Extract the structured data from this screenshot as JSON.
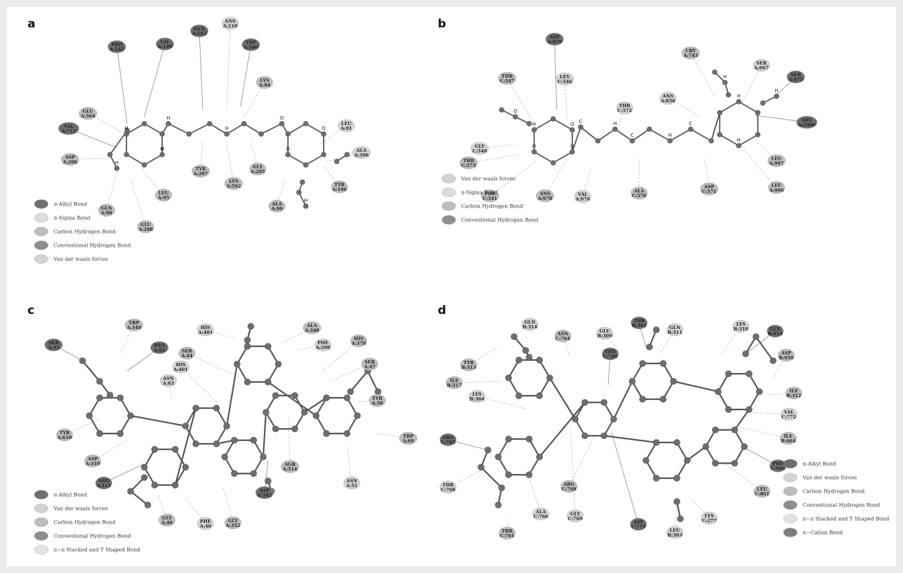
{
  "colors": {
    "pi_alkyl": "#6f6f6f",
    "pi_sigma": "#dcdcdc",
    "carbon_h": "#bdbdbd",
    "conv_h": "#8d8d8d",
    "vdw": "#d3d3d3",
    "pi_pi": "#e3e3e3",
    "pi_cation": "#7e7e7e"
  },
  "panels": [
    {
      "label": "a",
      "residues": [
        {
          "id": "val-a109",
          "name": "VAL",
          "num": "A:109",
          "type": "pi_alkyl"
        },
        {
          "id": "gln-a182",
          "name": "GLN",
          "num": "A:182",
          "type": "pi_alkyl"
        },
        {
          "id": "ans-a210",
          "name": "ANS",
          "num": "A:210",
          "type": "vdw"
        },
        {
          "id": "trp-a566",
          "name": "TRP",
          "num": "A:566",
          "type": "pi_alkyl"
        },
        {
          "id": "lys-a94",
          "name": "LYS",
          "num": "A:94",
          "type": "carbon_h"
        },
        {
          "id": "pro-a545",
          "name": "PRO",
          "num": "A:545",
          "type": "pi_alkyl"
        },
        {
          "id": "glu-a564",
          "name": "GLU",
          "num": "A:564",
          "type": "carbon_h"
        },
        {
          "id": "val-a712",
          "name": "VAL",
          "num": "A:712",
          "type": "pi_alkyl"
        },
        {
          "id": "asp-a206",
          "name": "ASP",
          "num": "A:206",
          "type": "carbon_h"
        },
        {
          "id": "gln-a98",
          "name": "GLN",
          "num": "A:98",
          "type": "carbon_h"
        },
        {
          "id": "glu-a208",
          "name": "GLU",
          "num": "A:208",
          "type": "carbon_h"
        },
        {
          "id": "leu-a95",
          "name": "LEU",
          "num": "A:95",
          "type": "carbon_h"
        },
        {
          "id": "tyr-a207",
          "name": "TYR",
          "num": "A:207",
          "type": "carbon_h"
        },
        {
          "id": "lys-a562",
          "name": "LYS",
          "num": "A:562",
          "type": "carbon_h"
        },
        {
          "id": "gly-a205",
          "name": "GLY",
          "num": "A:205",
          "type": "carbon_h"
        },
        {
          "id": "ala-a99",
          "name": "ALA",
          "num": "A:99",
          "type": "carbon_h"
        },
        {
          "id": "leu-a91",
          "name": "LEU",
          "num": "A:91",
          "type": "vdw"
        },
        {
          "id": "ala-a396",
          "name": "ALA",
          "num": "A:396",
          "type": "vdw"
        },
        {
          "id": "tyr-a196",
          "name": "TYR",
          "num": "A:196",
          "type": "carbon_h"
        }
      ],
      "legend": [
        {
          "label": "π-Alkyl Bond",
          "type": "pi_alkyl"
        },
        {
          "label": "π-Sigma Bond",
          "type": "pi_sigma"
        },
        {
          "label": "Carbon Hydrogen Bond",
          "type": "carbon_h"
        },
        {
          "label": "Conventional Hydrogen Bond",
          "type": "conv_h"
        },
        {
          "label": "Van der waals forces",
          "type": "vdw"
        }
      ],
      "atom_labels": [
        "O",
        "H",
        "H",
        "H",
        "O",
        "O",
        "O",
        "H",
        "H",
        "H",
        "H"
      ]
    },
    {
      "label": "b",
      "residues": [
        {
          "id": "asp-a979",
          "name": "ASP",
          "num": "A:979",
          "type": "pi_alkyl"
        },
        {
          "id": "cry-a743",
          "name": "CRY",
          "num": "A:743",
          "type": "carbon_h"
        },
        {
          "id": "ser-a967",
          "name": "SER",
          "num": "A:967",
          "type": "vdw"
        },
        {
          "id": "ser-a975",
          "name": "SER",
          "num": "A:975",
          "type": "pi_alkyl"
        },
        {
          "id": "thr-c547",
          "name": "THR",
          "num": "C:547",
          "type": "carbon_h"
        },
        {
          "id": "lev-c546",
          "name": "LEV",
          "num": "C:546",
          "type": "vdw"
        },
        {
          "id": "thr-c572",
          "name": "THR",
          "num": "C:572",
          "type": "vdw"
        },
        {
          "id": "ans-a856",
          "name": "ANS",
          "num": "A:856",
          "type": "vdw"
        },
        {
          "id": "arg-a1000",
          "name": "ARG",
          "num": "A:1000",
          "type": "pi_alkyl"
        },
        {
          "id": "gly-c548",
          "name": "GLY",
          "num": "C:548",
          "type": "vdw"
        },
        {
          "id": "thr-c573",
          "name": "THR",
          "num": "C:573",
          "type": "carbon_h"
        },
        {
          "id": "phe-c541",
          "name": "PHE",
          "num": "C:541",
          "type": "carbon_h"
        },
        {
          "id": "ans-a978",
          "name": "ANS",
          "num": "A:978",
          "type": "carbon_h"
        },
        {
          "id": "val-a976",
          "name": "VAL",
          "num": "A:976",
          "type": "vdw"
        },
        {
          "id": "ala-c570",
          "name": "ALA",
          "num": "C:570",
          "type": "carbon_h"
        },
        {
          "id": "asp-c571",
          "name": "ASP",
          "num": "C:571",
          "type": "carbon_h"
        },
        {
          "id": "leu-a966",
          "name": "LEU",
          "num": "A:966",
          "type": "carbon_h"
        },
        {
          "id": "leu-a997",
          "name": "LEU",
          "num": "A:997",
          "type": "carbon_h"
        }
      ],
      "legend": [
        {
          "label": "Van der waals forces",
          "type": "vdw"
        },
        {
          "label": "π-Sigma Bond",
          "type": "pi_sigma"
        },
        {
          "label": "Carbon Hydrogen Bond",
          "type": "carbon_h"
        },
        {
          "label": "Conventional Hydrogen Bond",
          "type": "conv_h"
        }
      ],
      "atom_labels": [
        "O",
        "H",
        "C",
        "C",
        "C",
        "H",
        "H",
        "O",
        "H",
        "H",
        "O",
        "O",
        "H",
        "H"
      ]
    },
    {
      "label": "c",
      "residues": [
        {
          "id": "ser-a43",
          "name": "SER",
          "num": "A:43",
          "type": "pi_alkyl"
        },
        {
          "id": "trp-a349",
          "name": "TRP",
          "num": "A:349",
          "type": "carbon_h"
        },
        {
          "id": "met-a92",
          "name": "MET",
          "num": "A:92",
          "type": "pi_alkyl"
        },
        {
          "id": "his-a401-top",
          "name": "HIS",
          "num": "A:401",
          "type": "vdw"
        },
        {
          "id": "ala-a348",
          "name": "ALA",
          "num": "A:348",
          "type": "carbon_h"
        },
        {
          "id": "phe-a390",
          "name": "PHE",
          "num": "A:390",
          "type": "vdw"
        },
        {
          "id": "his-a378",
          "name": "HIS",
          "num": "A:378",
          "type": "carbon_h"
        },
        {
          "id": "ser-a44",
          "name": "SER",
          "num": "A:44",
          "type": "carbon_h"
        },
        {
          "id": "his-a401",
          "name": "HIS",
          "num": "A:401",
          "type": "vdw"
        },
        {
          "id": "asn-a63",
          "name": "ASN",
          "num": "A:63",
          "type": "vdw"
        },
        {
          "id": "ser-a47",
          "name": "SER",
          "num": "A:47",
          "type": "carbon_h"
        },
        {
          "id": "tyr-a50",
          "name": "TYR",
          "num": "A:50",
          "type": "carbon_h"
        },
        {
          "id": "tyr-a610",
          "name": "TYR",
          "num": "A:610",
          "type": "carbon_h"
        },
        {
          "id": "asp-a310",
          "name": "ASP",
          "num": "A:310",
          "type": "carbon_h"
        },
        {
          "id": "arg-a111",
          "name": "ARG",
          "num": "A:111",
          "type": "pi_alkyl"
        },
        {
          "id": "trp-a69",
          "name": "TRP",
          "num": "A:69",
          "type": "carbon_h"
        },
        {
          "id": "agr-a514",
          "name": "AGR",
          "num": "A:514",
          "type": "carbon_h"
        },
        {
          "id": "asn-a51",
          "name": "ASN",
          "num": "A:51",
          "type": "vdw"
        },
        {
          "id": "asp-a382",
          "name": "ASP",
          "num": "A:382",
          "type": "pi_alkyl"
        },
        {
          "id": "gly-a46",
          "name": "GLY",
          "num": "A:46",
          "type": "carbon_h"
        },
        {
          "id": "phe-a40",
          "name": "PHE",
          "num": "A:40",
          "type": "vdw"
        },
        {
          "id": "gly-a352",
          "name": "GLY",
          "num": "A:352",
          "type": "carbon_h"
        }
      ],
      "legend": [
        {
          "label": "π-Alkyl Bond",
          "type": "pi_alkyl"
        },
        {
          "label": "Van der waals forces",
          "type": "vdw"
        },
        {
          "label": "Carbon Hydrogen Bond",
          "type": "carbon_h"
        },
        {
          "label": "Conventional Hydrogen Bond",
          "type": "conv_h"
        },
        {
          "label": "π−π Stacked and T Shaped Bond",
          "type": "pi_pi"
        }
      ],
      "atom_labels": []
    },
    {
      "label": "d",
      "residues": [
        {
          "id": "gln-b314",
          "name": "GLN",
          "num": "B:314",
          "type": "vdw"
        },
        {
          "id": "asn-c764",
          "name": "ASN",
          "num": "C:764",
          "type": "carbon_h"
        },
        {
          "id": "glu-b309",
          "name": "GLU",
          "num": "B:309",
          "type": "vdw"
        },
        {
          "id": "thr-b302",
          "name": "THR",
          "num": "B:302",
          "type": "pi_alkyl"
        },
        {
          "id": "gln-b311",
          "name": "GLN",
          "num": "B:311",
          "type": "vdw"
        },
        {
          "id": "lys-b310",
          "name": "LYS",
          "num": "B:310",
          "type": "vdw"
        },
        {
          "id": "gln-b954",
          "name": "GLN",
          "num": "B:954",
          "type": "pi_alkyl"
        },
        {
          "id": "thr-c760",
          "name": "THR",
          "num": "C:760",
          "type": "pi_alkyl"
        },
        {
          "id": "asp-b950",
          "name": "ASP",
          "num": "B:950",
          "type": "carbon_h"
        },
        {
          "id": "tyr-b313",
          "name": "TYR",
          "num": "B:313",
          "type": "carbon_h"
        },
        {
          "id": "ile-b317",
          "name": "ILE",
          "num": "B:317",
          "type": "carbon_h"
        },
        {
          "id": "ile-b312",
          "name": "ILE",
          "num": "B:312",
          "type": "carbon_h"
        },
        {
          "id": "lys-b304",
          "name": "LYS",
          "num": "B:304",
          "type": "vdw"
        },
        {
          "id": "val-c772",
          "name": "VAL",
          "num": "C:772",
          "type": "vdw"
        },
        {
          "id": "arg-c765",
          "name": "ARG",
          "num": "C:765",
          "type": "pi_alkyl"
        },
        {
          "id": "ile-b664",
          "name": "ILE",
          "num": "B:664",
          "type": "carbon_h"
        },
        {
          "id": "pro-c666",
          "name": "PRO",
          "num": "C:666",
          "type": "pi_alkyl"
        },
        {
          "id": "thr-c768",
          "name": "THR",
          "num": "C:768",
          "type": "vdw"
        },
        {
          "id": "arg-c769",
          "name": "ARG",
          "num": "C:769",
          "type": "carbon_h"
        },
        {
          "id": "leu-c861",
          "name": "LEU",
          "num": "C:861",
          "type": "carbon_h"
        },
        {
          "id": "ala-c766",
          "name": "ALA",
          "num": "C:766",
          "type": "vdw"
        },
        {
          "id": "gly-c769",
          "name": "GLY",
          "num": "C:769",
          "type": "vdw"
        },
        {
          "id": "asp-c775",
          "name": "ASP",
          "num": "C:775",
          "type": "pi_alkyl"
        },
        {
          "id": "lys-c277",
          "name": "LYS",
          "num": "C:277",
          "type": "vdw"
        },
        {
          "id": "thr-c761",
          "name": "THR",
          "num": "C:761",
          "type": "carbon_h"
        },
        {
          "id": "leu-b303",
          "name": "LEU",
          "num": "B:303",
          "type": "vdw"
        }
      ],
      "legend": [
        {
          "label": "π-Alkyl Bond",
          "type": "pi_alkyl"
        },
        {
          "label": "Van der waals forces",
          "type": "vdw"
        },
        {
          "label": "Carbon Hydrogen Bond",
          "type": "carbon_h"
        },
        {
          "label": "Conventional Hydrogen Bond",
          "type": "conv_h"
        },
        {
          "label": "π−π Stacked and T Shaped Bond",
          "type": "pi_pi"
        },
        {
          "label": "π−Cation Bond",
          "type": "pi_cation"
        }
      ],
      "atom_labels": []
    }
  ]
}
